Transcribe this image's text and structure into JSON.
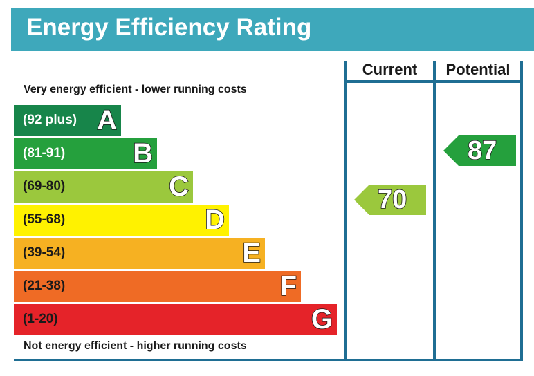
{
  "title": "Energy Efficiency Rating",
  "columns": {
    "current": "Current",
    "potential": "Potential"
  },
  "top_caption": "Very energy efficient - lower running costs",
  "bottom_caption": "Not energy efficient - higher running costs",
  "bands": [
    {
      "range": "(92 plus)",
      "letter": "A",
      "color": "#17854a"
    },
    {
      "range": "(81-91)",
      "letter": "B",
      "color": "#25a03d"
    },
    {
      "range": "(69-80)",
      "letter": "C",
      "color": "#9bc83d"
    },
    {
      "range": "(55-68)",
      "letter": "D",
      "color": "#fff200"
    },
    {
      "range": "(39-54)",
      "letter": "E",
      "color": "#f6b122"
    },
    {
      "range": "(21-38)",
      "letter": "F",
      "color": "#ef6b25"
    },
    {
      "range": "(1-20)",
      "letter": "G",
      "color": "#e52329"
    }
  ],
  "current_rating": {
    "value": "70",
    "band": "C",
    "color": "#9bc83d"
  },
  "potential_rating": {
    "value": "87",
    "band": "B",
    "color": "#25a03d"
  }
}
